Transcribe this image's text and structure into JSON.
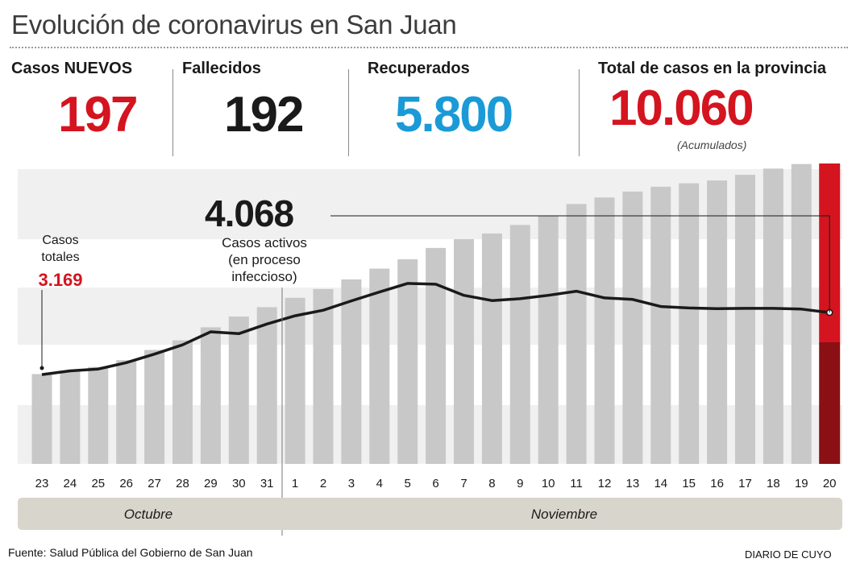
{
  "title": "Evolución de coronavirus en San Juan",
  "stats": [
    {
      "label": "Casos NUEVOS",
      "value": "197",
      "color": "#d4141f"
    },
    {
      "label": "Fallecidos",
      "value": "192",
      "color": "#1a1a1a"
    },
    {
      "label": "Recuperados",
      "value": "5.800",
      "color": "#1a9ad6"
    },
    {
      "label": "Total de casos en la provincia",
      "value": "10.060",
      "color": "#d4141f",
      "note": "(Acumulados)"
    }
  ],
  "chart_data": {
    "type": "bar",
    "categories": [
      "23",
      "24",
      "25",
      "26",
      "27",
      "28",
      "29",
      "30",
      "31",
      "1",
      "2",
      "3",
      "4",
      "5",
      "6",
      "7",
      "8",
      "9",
      "10",
      "11",
      "12",
      "13",
      "14",
      "15",
      "16",
      "17",
      "18",
      "19",
      "20"
    ],
    "months": [
      {
        "label": "Octubre"
      },
      {
        "label": "Noviembre"
      }
    ],
    "series": [
      {
        "values": [
          3169,
          3280,
          3420,
          3660,
          4020,
          4360,
          4820,
          5200,
          5530,
          5860,
          6170,
          6510,
          6890,
          7220,
          7620,
          7930,
          8130,
          8430,
          8740,
          9170,
          9400,
          9610,
          9780,
          9900,
          10000,
          10200,
          10420,
          10580,
          10060
        ]
      },
      {
        "values": [
          2400,
          2500,
          2550,
          2720,
          2950,
          3200,
          3550,
          3500,
          3760,
          3980,
          4130,
          4380,
          4620,
          4850,
          4830,
          4530,
          4390,
          4440,
          4530,
          4640,
          4460,
          4420,
          4230,
          4190,
          4170,
          4180,
          4180,
          4160,
          4068
        ]
      }
    ],
    "annotations": {
      "start_label": "Casos\ntotales",
      "start_value": "3.169",
      "active_value": "4.068",
      "active_label": "Casos activos\n(en proceso\ninfeccioso)"
    },
    "ylim": [
      0,
      10600
    ]
  },
  "footer": {
    "source": "Fuente: Salud Pública del Gobierno de San Juan",
    "brand": "DIARIO DE CUYO"
  },
  "colors": {
    "bar": "#c8c8c8",
    "highlight_bar": "#d4141f",
    "highlight_bar_dark": "#8b1013",
    "band": "#f0f0f0",
    "line": "#1a1a1a",
    "month_band": "#d8d5cc"
  }
}
